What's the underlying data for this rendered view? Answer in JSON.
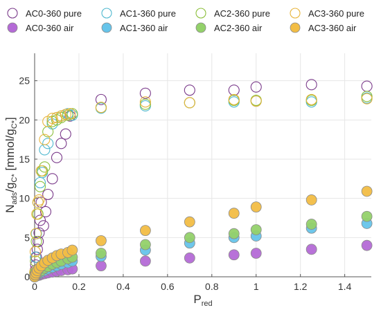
{
  "chart_data": {
    "type": "scatter",
    "xlabel": "P",
    "xlabel_sub": "red",
    "ylabel_parts": [
      "N",
      "ads",
      "/g",
      "C*",
      " [mmol/g",
      "C*",
      "]"
    ],
    "xlim": [
      0,
      1.52
    ],
    "ylim": [
      0,
      28.5
    ],
    "xticks": [
      "0",
      "0.2",
      "0.4",
      "0.6",
      "0.8",
      "1",
      "1.2",
      "1.4"
    ],
    "xtick_values": [
      0,
      0.2,
      0.4,
      0.6,
      0.8,
      1.0,
      1.2,
      1.4
    ],
    "yticks": [
      "0",
      "5",
      "10",
      "15",
      "20",
      "25"
    ],
    "ytick_values": [
      0,
      5,
      10,
      15,
      20,
      25
    ],
    "grid": true,
    "legend_position": "top",
    "series": [
      {
        "name": "AC0-360 pure",
        "color": "#7a3a8a",
        "filled": false,
        "x": [
          0.001,
          0.003,
          0.005,
          0.008,
          0.012,
          0.016,
          0.02,
          0.025,
          0.03,
          0.04,
          0.05,
          0.06,
          0.08,
          0.1,
          0.12,
          0.14,
          0.16,
          0.3,
          0.5,
          0.7,
          0.9,
          1.0,
          1.25,
          1.5
        ],
        "y": [
          0.2,
          0.8,
          1.5,
          2.5,
          3.5,
          4.5,
          5.6,
          7.2,
          9.5,
          6.5,
          8.3,
          10.5,
          12.5,
          15.2,
          17.0,
          18.2,
          20.5,
          22.6,
          23.4,
          23.8,
          23.8,
          24.2,
          24.5,
          24.3
        ]
      },
      {
        "name": "AC1-360 pure",
        "color": "#4fb8cf",
        "filled": false,
        "x": [
          0.001,
          0.004,
          0.008,
          0.015,
          0.025,
          0.035,
          0.045,
          0.06,
          0.08,
          0.1,
          0.12,
          0.15,
          0.17,
          0.3,
          0.5,
          0.7,
          0.9,
          1.0,
          1.25,
          1.5
        ],
        "y": [
          0.5,
          2.5,
          5.5,
          9.5,
          12.0,
          13.3,
          16.2,
          17.0,
          19.5,
          20.3,
          20.5,
          20.8,
          20.6,
          21.5,
          21.8,
          22.2,
          22.3,
          22.4,
          22.3,
          22.8
        ]
      },
      {
        "name": "AC2-360 pure",
        "color": "#8bbf3a",
        "filled": false,
        "x": [
          0.001,
          0.004,
          0.008,
          0.015,
          0.025,
          0.035,
          0.045,
          0.06,
          0.08,
          0.1,
          0.12,
          0.15,
          0.17,
          0.3,
          0.5,
          0.7,
          0.9,
          1.0,
          1.25,
          1.5
        ],
        "y": [
          0.4,
          2.0,
          4.5,
          8.0,
          11.5,
          13.5,
          14.0,
          18.5,
          19.8,
          20.0,
          20.3,
          20.6,
          20.8,
          21.6,
          22.0,
          22.2,
          22.5,
          22.5,
          22.5,
          23.0
        ]
      },
      {
        "name": "AC3-360 pure",
        "color": "#e7b43a",
        "filled": false,
        "x": [
          0.001,
          0.003,
          0.006,
          0.01,
          0.015,
          0.02,
          0.03,
          0.045,
          0.06,
          0.08,
          0.1,
          0.12,
          0.14,
          0.16,
          0.3,
          0.5,
          0.7,
          0.9,
          1.0,
          1.25,
          1.5
        ],
        "y": [
          0.6,
          3.2,
          5.5,
          8.0,
          9.5,
          9.8,
          13.5,
          17.5,
          19.8,
          20.2,
          20.3,
          20.5,
          20.7,
          20.8,
          21.6,
          22.3,
          22.2,
          22.6,
          22.4,
          22.6,
          22.7
        ]
      },
      {
        "name": "AC0-360 air",
        "color": "#b46ad6",
        "filled": true,
        "x": [
          0.0,
          0.003,
          0.007,
          0.012,
          0.02,
          0.03,
          0.045,
          0.06,
          0.08,
          0.1,
          0.12,
          0.15,
          0.17,
          0.3,
          0.5,
          0.7,
          0.9,
          1.0,
          1.25,
          1.5
        ],
        "y": [
          0.0,
          0.05,
          0.1,
          0.15,
          0.2,
          0.3,
          0.4,
          0.5,
          0.6,
          0.7,
          0.8,
          0.9,
          1.0,
          1.4,
          2.0,
          2.4,
          2.8,
          3.0,
          3.5,
          4.0
        ]
      },
      {
        "name": "AC1-360 air",
        "color": "#66c4ea",
        "filled": true,
        "x": [
          0.0,
          0.003,
          0.007,
          0.012,
          0.02,
          0.03,
          0.045,
          0.06,
          0.08,
          0.1,
          0.12,
          0.15,
          0.17,
          0.3,
          0.5,
          0.7,
          0.9,
          1.0,
          1.25,
          1.5
        ],
        "y": [
          0.0,
          0.1,
          0.2,
          0.3,
          0.4,
          0.6,
          0.8,
          1.0,
          1.2,
          1.4,
          1.6,
          1.8,
          2.0,
          2.6,
          3.4,
          4.3,
          5.0,
          5.2,
          6.2,
          6.8
        ]
      },
      {
        "name": "AC2-360 air",
        "color": "#93d16a",
        "filled": true,
        "x": [
          0.0,
          0.003,
          0.007,
          0.012,
          0.02,
          0.03,
          0.045,
          0.06,
          0.08,
          0.1,
          0.12,
          0.15,
          0.17,
          0.3,
          0.5,
          0.7,
          0.9,
          1.0,
          1.25,
          1.5
        ],
        "y": [
          0.0,
          0.15,
          0.3,
          0.4,
          0.6,
          0.8,
          1.1,
          1.3,
          1.6,
          1.8,
          2.0,
          2.3,
          2.5,
          3.0,
          4.1,
          5.0,
          5.5,
          6.0,
          6.7,
          7.7
        ]
      },
      {
        "name": "AC3-360 air",
        "color": "#f2bd45",
        "filled": true,
        "x": [
          0.0,
          0.003,
          0.007,
          0.012,
          0.02,
          0.03,
          0.045,
          0.06,
          0.08,
          0.1,
          0.12,
          0.15,
          0.17,
          0.3,
          0.5,
          0.7,
          0.9,
          1.0,
          1.25,
          1.5
        ],
        "y": [
          0.0,
          0.25,
          0.5,
          0.8,
          1.1,
          1.4,
          1.8,
          2.1,
          2.4,
          2.7,
          2.9,
          3.1,
          3.4,
          4.6,
          5.9,
          7.0,
          8.1,
          8.9,
          9.8,
          10.9
        ]
      }
    ]
  }
}
